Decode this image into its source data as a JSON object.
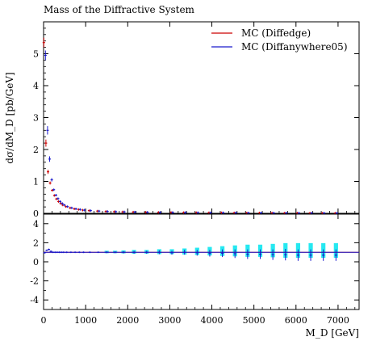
{
  "chart_data": [
    {
      "type": "scatter",
      "panel": "main",
      "title": "Mass of the Diffractive System",
      "ylabel": "dσ/dM_D [pb/GeV]",
      "xlabel": "",
      "xlim": [
        0,
        7500
      ],
      "ylim": [
        0,
        6
      ],
      "x_ticks": [
        "0",
        "1000",
        "2000",
        "3000",
        "4000",
        "5000",
        "6000",
        "7000"
      ],
      "y_ticks": [
        "0",
        "1",
        "2",
        "3",
        "4",
        "5"
      ],
      "grid": false,
      "legend_position": "top-right",
      "series": [
        {
          "name": "MC (Diffedge)",
          "color": "#cc0000",
          "x": [
            25,
            75,
            125,
            175,
            225,
            275,
            325,
            375,
            425,
            475,
            550,
            650,
            750,
            850,
            950,
            1100,
            1300,
            1500,
            1700,
            1900,
            2150,
            2450,
            2750,
            3050,
            3350,
            3650,
            3950,
            4250,
            4550,
            4850,
            5150,
            5450,
            5750,
            6050,
            6350,
            6650,
            6950
          ],
          "y": [
            5.35,
            2.2,
            1.3,
            0.95,
            0.72,
            0.56,
            0.45,
            0.37,
            0.31,
            0.26,
            0.21,
            0.17,
            0.14,
            0.12,
            0.1,
            0.085,
            0.07,
            0.06,
            0.052,
            0.045,
            0.04,
            0.035,
            0.03,
            0.027,
            0.024,
            0.021,
            0.019,
            0.017,
            0.015,
            0.013,
            0.012,
            0.011,
            0.01,
            0.009,
            0.008,
            0.007,
            0.006
          ]
        },
        {
          "name": "MC (Diffanywhere05)",
          "color": "#1a1acc",
          "x": [
            25,
            75,
            125,
            175,
            225,
            275,
            325,
            375,
            425,
            475,
            550,
            650,
            750,
            850,
            950,
            1100,
            1300,
            1500,
            1700,
            1900,
            2150,
            2450,
            2750,
            3050,
            3350,
            3650,
            3950,
            4250,
            4550,
            4850,
            5150,
            5450,
            5750,
            6050,
            6350,
            6650,
            6950
          ],
          "y": [
            4.95,
            2.6,
            1.7,
            1.05,
            0.74,
            0.57,
            0.46,
            0.37,
            0.31,
            0.26,
            0.21,
            0.17,
            0.14,
            0.12,
            0.1,
            0.085,
            0.07,
            0.06,
            0.052,
            0.045,
            0.04,
            0.035,
            0.03,
            0.027,
            0.024,
            0.021,
            0.019,
            0.017,
            0.015,
            0.013,
            0.012,
            0.011,
            0.01,
            0.009,
            0.008,
            0.007,
            0.006
          ]
        }
      ]
    },
    {
      "type": "scatter",
      "panel": "ratio",
      "xlabel": "M_D [GeV]",
      "ylabel": "",
      "xlim": [
        0,
        7500
      ],
      "ylim": [
        -5,
        5
      ],
      "x_ticks": [
        "0",
        "1000",
        "2000",
        "3000",
        "4000",
        "5000",
        "6000",
        "7000"
      ],
      "y_ticks": [
        "-4",
        "-2",
        "0",
        "2",
        "4"
      ],
      "reference_line": 1,
      "band_color": "#00e5ee",
      "series": [
        {
          "name": "MC (Diffanywhere05)",
          "color": "#1a1acc",
          "x": [
            25,
            75,
            125,
            175,
            225,
            275,
            325,
            375,
            425,
            475,
            550,
            650,
            750,
            850,
            950,
            1100,
            1300,
            1500,
            1700,
            1900,
            2150,
            2450,
            2750,
            3050,
            3350,
            3650,
            3950,
            4250,
            4550,
            4850,
            5150,
            5450,
            5750,
            6050,
            6350,
            6650,
            6950
          ],
          "y": [
            0.95,
            1.2,
            1.3,
            1.1,
            1.0,
            1.0,
            1.0,
            1.0,
            1.0,
            1.0,
            1.0,
            1.0,
            1.0,
            1.0,
            1.0,
            1.0,
            1.0,
            1.0,
            1.0,
            1.0,
            1.0,
            1.0,
            1.0,
            0.95,
            1.0,
            0.95,
            0.9,
            0.9,
            0.85,
            0.8,
            0.8,
            0.75,
            0.75,
            0.7,
            0.7,
            0.7,
            0.7
          ],
          "err": [
            0.05,
            0.05,
            0.05,
            0.05,
            0.05,
            0.05,
            0.05,
            0.05,
            0.05,
            0.05,
            0.05,
            0.05,
            0.05,
            0.05,
            0.05,
            0.05,
            0.08,
            0.1,
            0.1,
            0.12,
            0.15,
            0.15,
            0.2,
            0.2,
            0.25,
            0.3,
            0.35,
            0.4,
            0.45,
            0.5,
            0.5,
            0.55,
            0.6,
            0.6,
            0.6,
            0.6,
            0.6
          ]
        }
      ]
    }
  ]
}
